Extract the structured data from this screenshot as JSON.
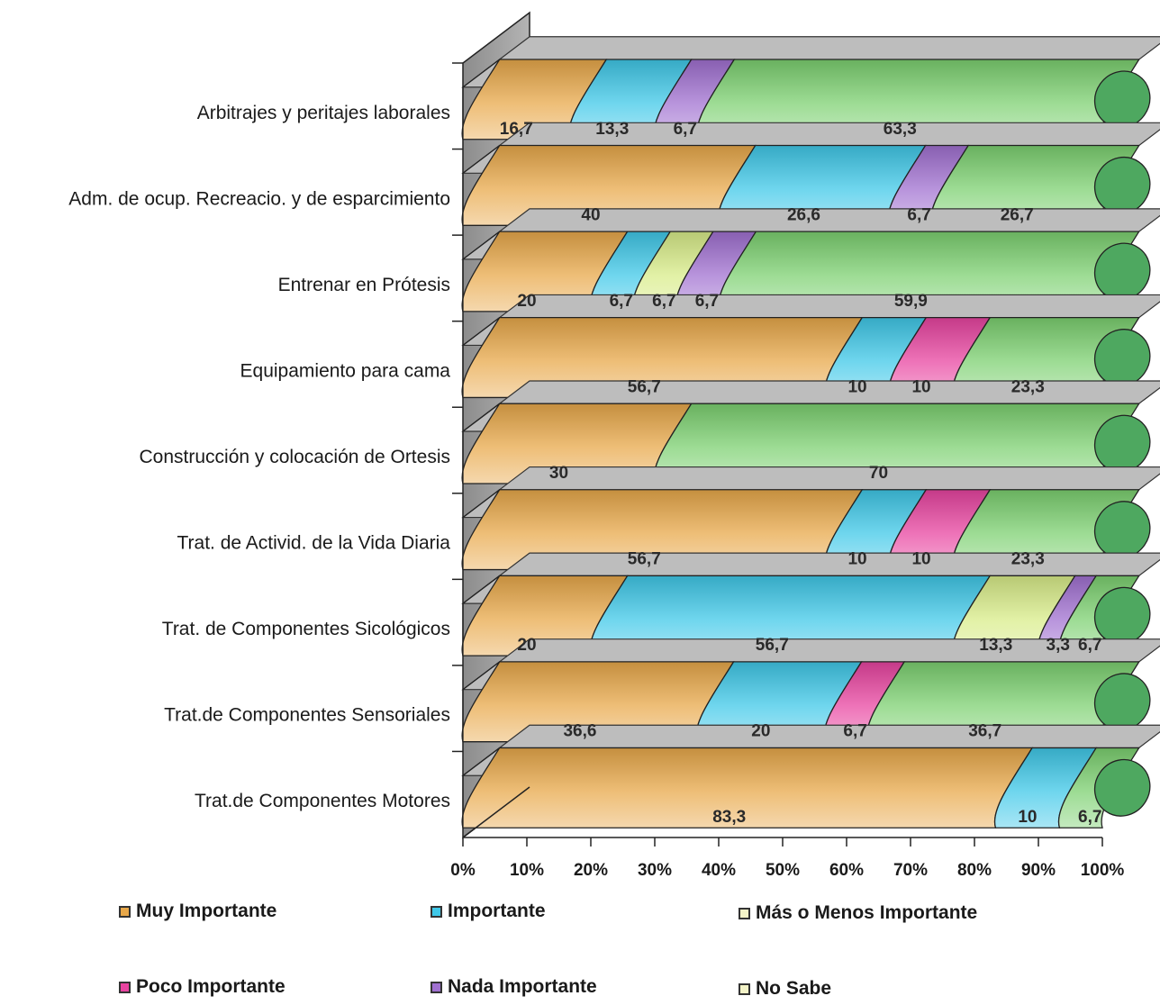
{
  "chart_data": {
    "type": "bar",
    "orientation": "horizontal",
    "stacked": true,
    "percent": true,
    "three_d": true,
    "categories": [
      "Arbitrajes y peritajes laborales",
      "Adm. de ocup. Recreacio. y de esparcimiento",
      "Entrenar en Prótesis",
      "Equipamiento para cama",
      "Construcción y colocación de Ortesis",
      "Trat. de Activid. de la Vida Diaria",
      "Trat. de Componentes Sicológicos",
      "Trat.de Componentes Sensoriales",
      "Trat.de Componentes Motores"
    ],
    "series": [
      {
        "name": "Muy Importante",
        "color": "#e8a84a",
        "values": [
          16.7,
          40,
          20,
          56.7,
          30,
          56.7,
          20,
          36.6,
          83.3
        ],
        "labels": [
          "16,7",
          "40",
          "20",
          "56,7",
          "30",
          "56,7",
          "20",
          "36,6",
          "83,3"
        ]
      },
      {
        "name": "Importante",
        "color": "#3fc8e8",
        "values": [
          13.3,
          26.6,
          6.7,
          10,
          0,
          10,
          56.7,
          20,
          10
        ],
        "labels": [
          "13,3",
          "26,6",
          "6,7",
          "10",
          "",
          "10",
          "56,7",
          "20",
          "10"
        ]
      },
      {
        "name": "Más o Menos Importante",
        "color": "#d8ec88",
        "values": [
          0,
          0,
          6.7,
          0,
          0,
          0,
          13.3,
          0,
          0
        ],
        "labels": [
          "",
          "",
          "6,7",
          "",
          "",
          "",
          "13,3",
          "",
          ""
        ]
      },
      {
        "name": "Poco Importante",
        "color": "#e844a0",
        "values": [
          0,
          0,
          0,
          10,
          0,
          10,
          0,
          6.7,
          0
        ],
        "labels": [
          "",
          "",
          "",
          "10",
          "",
          "10",
          "",
          "6,7",
          ""
        ]
      },
      {
        "name": "Nada Importante",
        "color": "#a070d0",
        "values": [
          6.7,
          6.7,
          6.7,
          0,
          0,
          0,
          3.3,
          0,
          0
        ],
        "labels": [
          "6,7",
          "6,7",
          "6,7",
          "",
          "",
          "",
          "3,3",
          "",
          ""
        ]
      },
      {
        "name": "No Sabe",
        "color": "#7cd070",
        "values": [
          63.3,
          26.7,
          59.9,
          23.3,
          70,
          23.3,
          6.7,
          36.7,
          6.7
        ],
        "labels": [
          "63,3",
          "26,7",
          "59,9",
          "23,3",
          "70",
          "23,3",
          "6,7",
          "36,7",
          "6,7"
        ]
      }
    ],
    "x_ticks": [
      "0%",
      "10%",
      "20%",
      "30%",
      "40%",
      "50%",
      "60%",
      "70%",
      "80%",
      "90%",
      "100%"
    ],
    "xlim": [
      0,
      100
    ],
    "legend_position": "bottom",
    "title": "",
    "xlabel": "",
    "ylabel": ""
  }
}
